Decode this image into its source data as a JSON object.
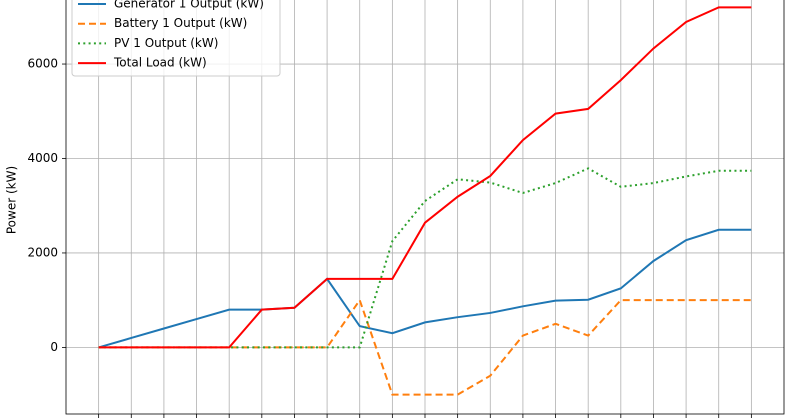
{
  "chart_data": {
    "type": "line",
    "y_label": "Power (kW)",
    "x": [
      0,
      1,
      2,
      3,
      4,
      5,
      6,
      7,
      8,
      9,
      10,
      11,
      12,
      13,
      14,
      15,
      16,
      17,
      18,
      19,
      20
    ],
    "xlim": [
      -1,
      21
    ],
    "xticks": [
      0,
      1,
      2,
      3,
      4,
      5,
      6,
      7,
      8,
      9,
      10,
      11,
      12,
      13,
      14,
      15,
      16,
      17,
      18,
      19,
      20
    ],
    "ylim": [
      -1410,
      7610
    ],
    "yticks": [
      0,
      2000,
      4000,
      6000
    ],
    "grid": true,
    "legend": "upper left",
    "series": [
      {
        "name": "Generator 1 Output (kW)",
        "color": "#1f77b4",
        "dash": "solid",
        "values": [
          0,
          200,
          400,
          600,
          800,
          800,
          840,
          1450,
          450,
          300,
          530,
          640,
          730,
          870,
          990,
          1010,
          1250,
          1830,
          2270,
          2490,
          2490
        ]
      },
      {
        "name": "Battery 1 Output (kW)",
        "color": "#ff7f0e",
        "dash": "dashed",
        "values": [
          0,
          0,
          0,
          0,
          0,
          0,
          0,
          0,
          1000,
          -1000,
          -1000,
          -1000,
          -600,
          250,
          500,
          250,
          1000,
          1000,
          1000,
          1000,
          1000
        ]
      },
      {
        "name": "PV 1 Output (kW)",
        "color": "#2ca02c",
        "dash": "dotted",
        "values": [
          0,
          0,
          0,
          0,
          0,
          0,
          0,
          0,
          0,
          2250,
          3100,
          3560,
          3490,
          3270,
          3480,
          3790,
          3400,
          3480,
          3620,
          3740,
          3740
        ]
      },
      {
        "name": "Total Load (kW)",
        "color": "#ff0000",
        "dash": "solid",
        "values": [
          0,
          0,
          0,
          0,
          0,
          800,
          840,
          1450,
          1450,
          1450,
          2640,
          3190,
          3630,
          4390,
          4950,
          5050,
          5660,
          6330,
          6890,
          7200,
          7200
        ]
      }
    ]
  }
}
